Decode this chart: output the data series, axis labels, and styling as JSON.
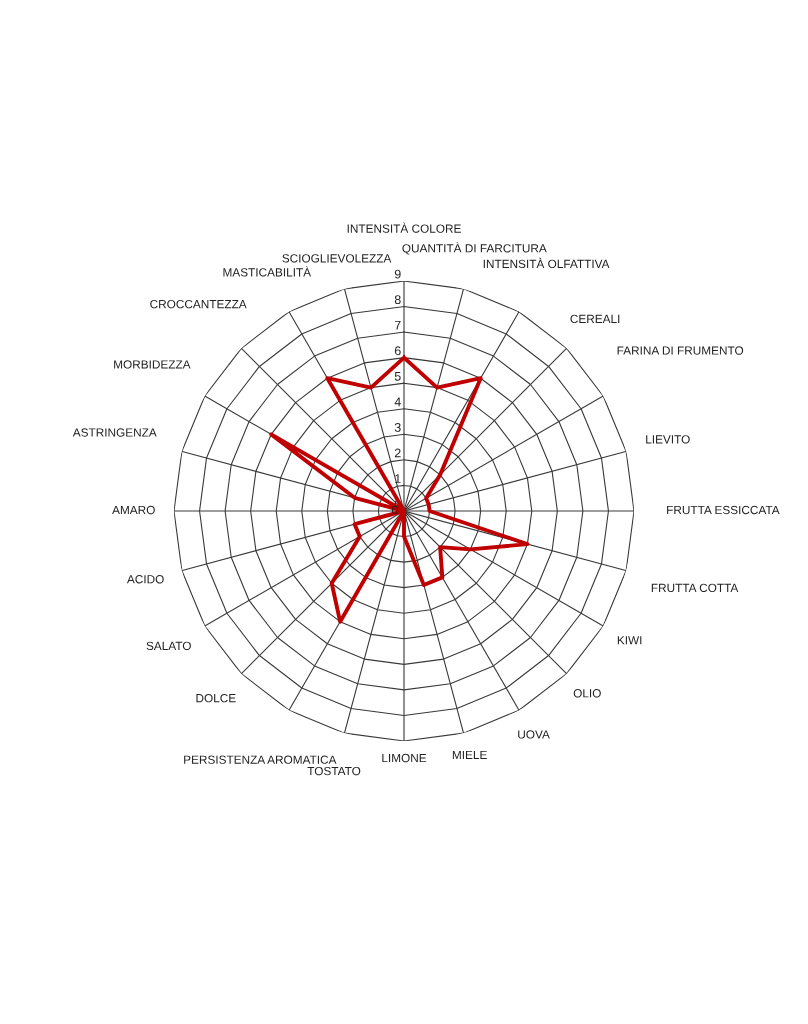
{
  "chart_data": {
    "type": "radar",
    "categories": [
      "INTENSITÀ COLORE",
      "QUANTITÀ DI FARCITURA",
      "INTENSITÀ OLFATTIVA",
      "CEREALI",
      "FARINA DI FRUMENTO",
      "LIEVITO",
      "FRUTTA ESSICCATA",
      "FRUTTA COTTA",
      "KIWI",
      "OLIO",
      "UOVA",
      "MIELE",
      "LIMONE",
      "TOSTATO",
      "PERSISTENZA AROMATICA",
      "DOLCE",
      "SALATO",
      "ACIDO",
      "AMARO",
      "ASTRINGENZA",
      "MORBIDEZZA",
      "CROCCANTEZZA",
      "MASTICABILITÀ",
      "SCIOGLIEVOLEZZA"
    ],
    "series": [
      {
        "color": "#c00000",
        "values": [
          6,
          5,
          6,
          2,
          1,
          1,
          1,
          5,
          3,
          2,
          3,
          3,
          1,
          0,
          5,
          4,
          2,
          2,
          0,
          2,
          6,
          0,
          6,
          5
        ]
      }
    ],
    "ylim": [
      0,
      9
    ],
    "yticks": [
      0,
      1,
      2,
      3,
      4,
      5,
      6,
      7,
      8,
      9
    ],
    "grid": true,
    "line_style": "solid"
  }
}
